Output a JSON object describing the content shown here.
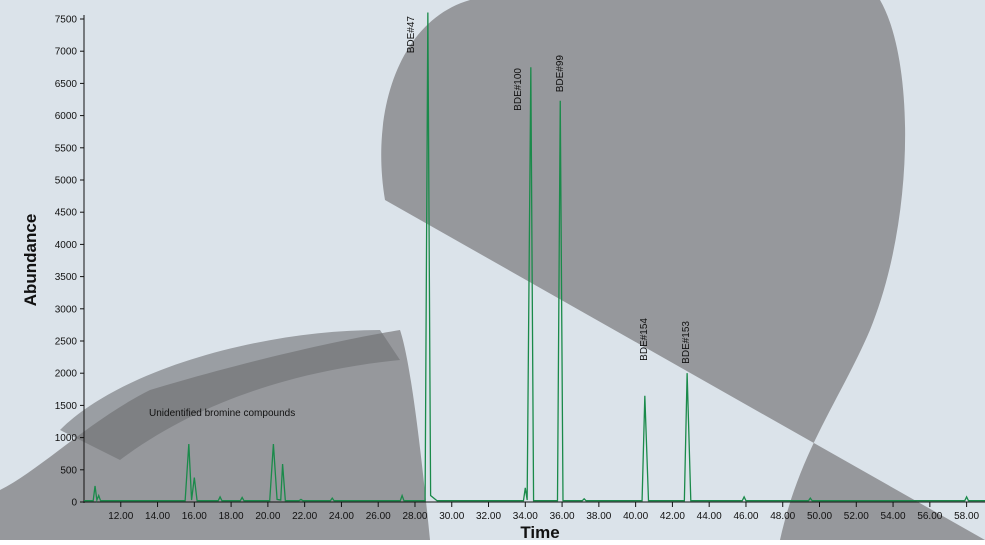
{
  "chart_data": {
    "type": "line",
    "x_label": "Time",
    "y_label": "Abundance",
    "annotations": [
      "BDE#47",
      "BDE#100",
      "BDE#99",
      "BDE#154",
      "BDE#153",
      "Unidentified bromine compounds"
    ],
    "series": [
      {
        "color": "#1a8a4a",
        "x": [
          10.0,
          10.5,
          10.6,
          10.7,
          10.8,
          10.9,
          15.5,
          15.7,
          15.85,
          16.0,
          16.15,
          17.3,
          17.4,
          17.5,
          18.5,
          18.6,
          18.7,
          20.1,
          20.3,
          20.5,
          20.7,
          20.8,
          20.95,
          21.7,
          21.8,
          21.9,
          23.4,
          23.5,
          23.6,
          27.2,
          27.3,
          27.4,
          28.55,
          28.7,
          28.85,
          29.2,
          33.9,
          34.0,
          34.1,
          34.3,
          34.45,
          35.75,
          35.9,
          36.05,
          37.1,
          37.2,
          37.3,
          40.35,
          40.5,
          40.7,
          42.65,
          42.8,
          43.0,
          45.8,
          45.9,
          46.0,
          49.4,
          49.5,
          49.6,
          57.9,
          58.0,
          58.1,
          59.0
        ],
        "values": [
          20,
          20,
          250,
          30,
          100,
          20,
          20,
          900,
          30,
          380,
          20,
          20,
          80,
          20,
          20,
          70,
          20,
          20,
          900,
          40,
          30,
          590,
          20,
          20,
          40,
          20,
          20,
          60,
          20,
          20,
          100,
          20,
          20,
          7600,
          100,
          20,
          20,
          220,
          30,
          6750,
          20,
          20,
          6230,
          20,
          20,
          50,
          20,
          20,
          1650,
          20,
          20,
          2000,
          20,
          20,
          80,
          20,
          20,
          60,
          20,
          20,
          80,
          20,
          20
        ]
      }
    ],
    "xlim": [
      10,
      59
    ],
    "ylim": [
      0,
      7500
    ],
    "xticks": [
      {
        "value": 12,
        "label": "12.00"
      },
      {
        "value": 14,
        "label": "14.00"
      },
      {
        "value": 16,
        "label": "16.00"
      },
      {
        "value": 18,
        "label": "18.00"
      },
      {
        "value": 20,
        "label": "20.00"
      },
      {
        "value": 22,
        "label": "22.00"
      },
      {
        "value": 24,
        "label": "24.00"
      },
      {
        "value": 26,
        "label": "26.00"
      },
      {
        "value": 28,
        "label": "28.00"
      },
      {
        "value": 30,
        "label": "30.00"
      },
      {
        "value": 32,
        "label": "32.00"
      },
      {
        "value": 34,
        "label": "34.00"
      },
      {
        "value": 36,
        "label": "36.00"
      },
      {
        "value": 38,
        "label": "38.00"
      },
      {
        "value": 40,
        "label": "40.00"
      },
      {
        "value": 42,
        "label": "42.00"
      },
      {
        "value": 44,
        "label": "44.00"
      },
      {
        "value": 46,
        "label": "46.00"
      },
      {
        "value": 48,
        "label": "48.00"
      },
      {
        "value": 50,
        "label": "50.00"
      },
      {
        "value": 52,
        "label": "52.00"
      },
      {
        "value": 54,
        "label": "54.00"
      },
      {
        "value": 56,
        "label": "56.00"
      },
      {
        "value": 58,
        "label": "58.00"
      }
    ],
    "yticks": [
      0,
      500,
      1000,
      1500,
      2000,
      2500,
      3000,
      3500,
      4000,
      4500,
      5000,
      5500,
      6000,
      6500,
      7000,
      7500
    ]
  }
}
